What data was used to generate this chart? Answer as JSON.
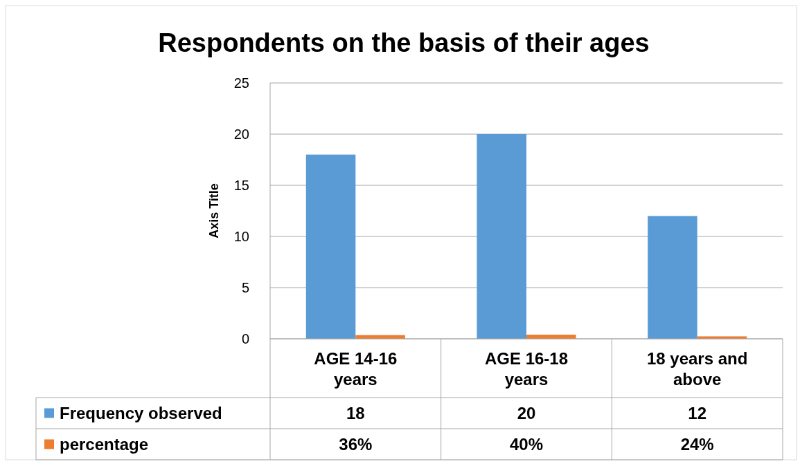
{
  "chart_data": {
    "type": "bar",
    "title": "Respondents on the basis of their ages",
    "ylabel": "Axis Title",
    "categories": [
      "AGE 14-16 years",
      "AGE 16-18 years",
      "18 years and above"
    ],
    "series": [
      {
        "name": "Frequency observed",
        "color": "#5b9bd5",
        "values": [
          18,
          20,
          12
        ],
        "value_labels": [
          "18",
          "20",
          "12"
        ]
      },
      {
        "name": "percentage",
        "color": "#ed7d31",
        "values": [
          0.36,
          0.4,
          0.24
        ],
        "value_labels": [
          "36%",
          "40%",
          "24%"
        ]
      }
    ],
    "ylim": [
      0,
      25
    ],
    "yticks": [
      0,
      5,
      10,
      15,
      20,
      25
    ],
    "grid": "y",
    "legend": "bottom"
  }
}
